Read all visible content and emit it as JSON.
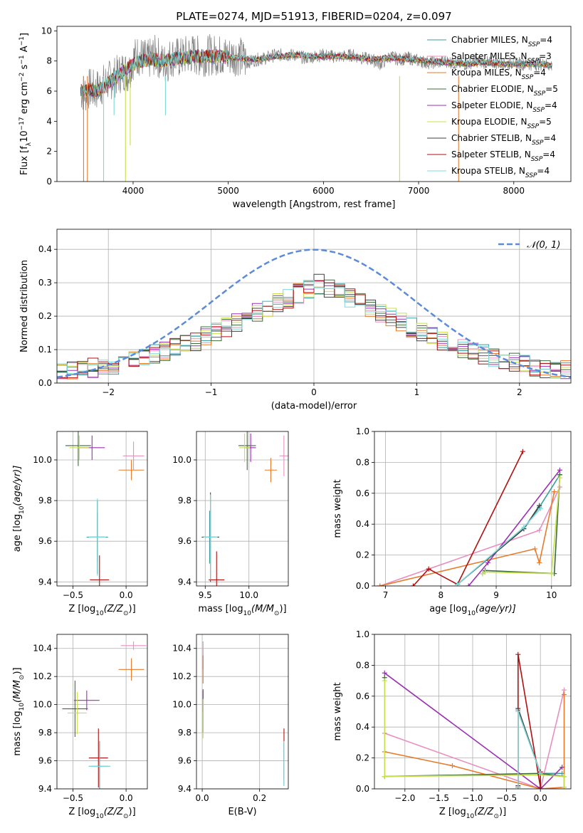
{
  "figure_title": "PLATE=0274, MJD=51913, FIBERID=0204, z=0.097",
  "models": [
    {
      "label": "Chabrier MILES, N$_{SSP}$=4",
      "display": [
        "Chabrier MILES, N",
        "SSP",
        "=4"
      ],
      "color": "#3a9e9e"
    },
    {
      "label": "Salpeter MILES, N$_{SSP}$=3",
      "display": [
        "Salpeter MILES, N",
        "SSP",
        "=3"
      ],
      "color": "#e88fbf"
    },
    {
      "label": "Kroupa MILES, N$_{SSP}$=4",
      "display": [
        "Kroupa MILES, N",
        "SSP",
        "=4"
      ],
      "color": "#e87a2a"
    },
    {
      "label": "Chabrier ELODIE, N$_{SSP}$=5",
      "display": [
        "Chabrier ELODIE, N",
        "SSP",
        "=5"
      ],
      "color": "#3d6b3d"
    },
    {
      "label": "Salpeter ELODIE, N$_{SSP}$=4",
      "display": [
        "Salpeter ELODIE, N",
        "SSP",
        "=4"
      ],
      "color": "#9b30b5"
    },
    {
      "label": "Kroupa ELODIE, N$_{SSP}$=5",
      "display": [
        "Kroupa ELODIE, N",
        "SSP",
        "=5"
      ],
      "color": "#c8e04a"
    },
    {
      "label": "Chabrier STELIB, N$_{SSP}$=4",
      "display": [
        "Chabrier STELIB, N",
        "SSP",
        "=4"
      ],
      "color": "#404040"
    },
    {
      "label": "Salpeter STELIB, N$_{SSP}$=4",
      "display": [
        "Salpeter STELIB, N",
        "SSP",
        "=4"
      ],
      "color": "#b01010"
    },
    {
      "label": "Kroupa STELIB, N$_{SSP}$=4",
      "display": [
        "Kroupa STELIB, N",
        "SSP",
        "=4"
      ],
      "color": "#7fd8d8"
    }
  ],
  "chart_data": [
    {
      "type": "line",
      "id": "spectrum",
      "xlabel": "wavelength [Angstrom, rest frame]",
      "ylabel": "Flux [f$_\\lambda$10$^{-17}$ erg cm$^{-2}$ s$^{-1}$ A$^{-1}$]",
      "ylabel_display": [
        "Flux [f",
        "λ",
        "10",
        "−17",
        " erg cm",
        "−2",
        " s",
        "−1",
        " A",
        "−1",
        "]"
      ],
      "xlim": [
        3200,
        8600
      ],
      "ylim": [
        0,
        10.3
      ],
      "xticks": [
        4000,
        5000,
        6000,
        7000,
        8000
      ],
      "yticks": [
        0,
        2,
        4,
        6,
        8,
        10
      ],
      "grid": false,
      "legend": "right",
      "data_series": {
        "name": "data",
        "color": "#808080",
        "x": [
          3450,
          3500,
          3550,
          3600,
          3650,
          3700,
          3750,
          3800,
          3850,
          3900,
          3950,
          4000,
          4050,
          4100,
          4150,
          4200,
          4250,
          4300,
          4350,
          4400,
          4500,
          4600,
          4700,
          4800,
          4900,
          5000,
          5100,
          5200,
          5300,
          5400,
          5500,
          5600,
          5700,
          5800,
          5900,
          6000,
          6100,
          6200,
          6300,
          6400,
          6500,
          6600,
          6700,
          6800,
          6900,
          7000,
          7100,
          7200,
          7300,
          7400,
          7500,
          7600,
          7700,
          7800,
          7900,
          8000,
          8100,
          8200,
          8300,
          8400
        ],
        "y": [
          6.0,
          5.9,
          6.2,
          6.0,
          6.3,
          6.5,
          6.7,
          6.9,
          7.1,
          7.4,
          7.2,
          8.1,
          8.4,
          8.2,
          8.0,
          8.3,
          8.4,
          7.9,
          7.8,
          8.3,
          8.2,
          8.5,
          8.3,
          8.4,
          8.4,
          8.3,
          8.4,
          7.9,
          8.1,
          8.2,
          8.4,
          8.4,
          8.4,
          8.2,
          8.3,
          8.4,
          8.3,
          8.3,
          8.4,
          8.2,
          8.1,
          7.8,
          8.3,
          8.1,
          8.2,
          8.0,
          7.9,
          7.9,
          8.0,
          7.8,
          7.8,
          8.0,
          7.9,
          7.9,
          7.8,
          7.9,
          7.8,
          7.8,
          7.8,
          7.7
        ]
      },
      "model_curve": {
        "x": [
          3450,
          3500,
          3550,
          3600,
          3650,
          3700,
          3800,
          3900,
          4000,
          4100,
          4200,
          4300,
          4400,
          4500,
          4700,
          4900,
          5100,
          5300,
          5500,
          5700,
          5900,
          6100,
          6300,
          6500,
          6700,
          6900,
          7100,
          7300,
          7500,
          7700,
          7900,
          8100,
          8300,
          8400
        ],
        "y": [
          6.0,
          6.0,
          6.1,
          6.0,
          6.1,
          6.3,
          6.8,
          7.3,
          7.8,
          8.0,
          8.1,
          8.0,
          8.1,
          8.2,
          8.3,
          8.3,
          8.2,
          8.1,
          8.3,
          8.4,
          8.3,
          8.3,
          8.3,
          8.1,
          8.2,
          8.1,
          8.0,
          7.9,
          7.8,
          7.9,
          7.8,
          7.8,
          7.8,
          7.7
        ]
      },
      "dips": [
        {
          "x": 3480,
          "y": 0.0
        },
        {
          "x": 3520,
          "y": 0.0
        },
        {
          "x": 3690,
          "y": 0.0
        },
        {
          "x": 3800,
          "y": 4.4
        },
        {
          "x": 3920,
          "y": 0.0
        },
        {
          "x": 3970,
          "y": 2.4
        },
        {
          "x": 4340,
          "y": 4.4
        },
        {
          "x": 6800,
          "y": 0.0
        },
        {
          "x": 7420,
          "y": 0.0
        }
      ]
    },
    {
      "type": "histogram",
      "id": "residuals",
      "xlabel": "(data-model)/error",
      "ylabel": "Normed distribution",
      "xlim": [
        -2.5,
        2.5
      ],
      "ylim": [
        0,
        0.46
      ],
      "xticks": [
        -2,
        -1,
        0,
        1,
        2
      ],
      "yticks": [
        0.0,
        0.1,
        0.2,
        0.3,
        0.4
      ],
      "grid": true,
      "legend": "top-right",
      "bin_width": 0.1,
      "bin_start": -2.5,
      "base_values": [
        0.035,
        0.04,
        0.042,
        0.045,
        0.048,
        0.055,
        0.062,
        0.07,
        0.078,
        0.086,
        0.094,
        0.104,
        0.115,
        0.126,
        0.139,
        0.152,
        0.166,
        0.18,
        0.195,
        0.21,
        0.225,
        0.24,
        0.254,
        0.268,
        0.282,
        0.296,
        0.31,
        0.323,
        0.335,
        0.346,
        0.356,
        0.366,
        0.375,
        0.383,
        0.39,
        0.396,
        0.4,
        0.402,
        0.403,
        0.402,
        0.4,
        0.397,
        0.392,
        0.386,
        0.379,
        0.371,
        0.362,
        0.352,
        0.341,
        0.33,
        0.318
      ],
      "gaussian": {
        "label": "$\\mathcal{N}(0,1)$",
        "display": "𝒩(0, 1)",
        "color": "#5b8bd9",
        "mu": 0,
        "sigma": 1
      }
    },
    {
      "type": "scatter",
      "id": "age_vs_Z",
      "xlabel": "Z [log$_{10}$(Z/Z$_\\odot$)]",
      "xlabel_display": [
        "Z [log",
        "10",
        "(Z/Z",
        "⊙",
        ")]"
      ],
      "ylabel": "age  [log$_{10}$(age/yr)]",
      "ylabel_display": [
        "age  [log",
        "10",
        "(age/yr)]"
      ],
      "xlim": [
        -0.65,
        0.2
      ],
      "ylim": [
        9.38,
        10.14
      ],
      "xticks": [
        -0.5,
        0.0
      ],
      "yticks": [
        9.4,
        9.6,
        9.8,
        10.0
      ],
      "grid": true,
      "points": [
        {
          "model": 0,
          "x": -0.27,
          "y": 9.62,
          "xerr": 0.1,
          "yerr": 0.12
        },
        {
          "model": 1,
          "x": 0.07,
          "y": 10.02,
          "xerr": 0.1,
          "yerr": 0.07
        },
        {
          "model": 2,
          "x": 0.05,
          "y": 9.95,
          "xerr": 0.12,
          "yerr": 0.05
        },
        {
          "model": 3,
          "x": -0.45,
          "y": 10.07,
          "xerr": 0.12,
          "yerr": 0.1
        },
        {
          "model": 4,
          "x": -0.32,
          "y": 10.06,
          "xerr": 0.12,
          "yerr": 0.06
        },
        {
          "model": 5,
          "x": -0.44,
          "y": 10.06,
          "xerr": 0.09,
          "yerr": 0.06
        },
        {
          "model": 6,
          "x": -0.27,
          "y": 9.62,
          "xerr": 0.07,
          "yerr": 0.18
        },
        {
          "model": 7,
          "x": -0.25,
          "y": 9.41,
          "xerr": 0.09,
          "yerr": 0.12
        },
        {
          "model": 8,
          "x": -0.27,
          "y": 9.62,
          "xerr": 0.08,
          "yerr": 0.19
        }
      ]
    },
    {
      "type": "scatter",
      "id": "age_vs_mass",
      "xlabel": "mass [log$_{10}$(M/M$_\\odot$)]",
      "xlabel_display": [
        "mass [log",
        "10",
        "(M/M",
        "⊙",
        ")]"
      ],
      "ylabel": "",
      "xlim": [
        9.4,
        10.45
      ],
      "ylim": [
        9.38,
        10.14
      ],
      "xticks": [
        9.5,
        10.0
      ],
      "yticks": [
        9.4,
        9.6,
        9.8,
        10.0
      ],
      "grid": true,
      "points": [
        {
          "model": 0,
          "x": 9.55,
          "y": 9.62,
          "xerr": 0.07,
          "yerr": 0.13
        },
        {
          "model": 1,
          "x": 10.4,
          "y": 10.02,
          "xerr": 0.05,
          "yerr": 0.1
        },
        {
          "model": 2,
          "x": 10.25,
          "y": 9.95,
          "xerr": 0.07,
          "yerr": 0.06
        },
        {
          "model": 3,
          "x": 9.98,
          "y": 10.07,
          "xerr": 0.1,
          "yerr": 0.12
        },
        {
          "model": 4,
          "x": 10.02,
          "y": 10.06,
          "xerr": 0.06,
          "yerr": 0.07
        },
        {
          "model": 5,
          "x": 9.95,
          "y": 10.06,
          "xerr": 0.06,
          "yerr": 0.07
        },
        {
          "model": 6,
          "x": 9.56,
          "y": 9.62,
          "xerr": 0.1,
          "yerr": 0.22
        },
        {
          "model": 7,
          "x": 9.63,
          "y": 9.41,
          "xerr": 0.09,
          "yerr": 0.14
        },
        {
          "model": 8,
          "x": 9.56,
          "y": 9.62,
          "xerr": 0.08,
          "yerr": 0.21
        }
      ]
    },
    {
      "type": "line",
      "id": "mass_weight_vs_age",
      "xlabel": "age  [log$_{10}$(age/yr)]",
      "xlabel_display": [
        "age  [log",
        "10",
        "(age/yr)]"
      ],
      "ylabel": "mass weight",
      "xlim": [
        6.8,
        10.35
      ],
      "ylim": [
        0,
        1.0
      ],
      "xticks": [
        7,
        8,
        9,
        10
      ],
      "yticks": [
        0.0,
        0.2,
        0.4,
        0.6,
        0.8,
        1.0
      ],
      "grid": true,
      "series": [
        {
          "model": 0,
          "x": [
            8.3,
            9.5,
            9.78,
            10.15
          ],
          "y": [
            0.01,
            0.37,
            0.51,
            0.72
          ]
        },
        {
          "model": 1,
          "x": [
            6.9,
            9.78,
            10.15
          ],
          "y": [
            0.0,
            0.36,
            0.64
          ]
        },
        {
          "model": 2,
          "x": [
            6.9,
            9.7,
            9.78,
            10.05
          ],
          "y": [
            0.0,
            0.24,
            0.15,
            0.61
          ]
        },
        {
          "model": 3,
          "x": [
            8.75,
            8.8,
            10.05,
            10.15
          ],
          "y": [
            0.08,
            0.1,
            0.08,
            0.72
          ]
        },
        {
          "model": 4,
          "x": [
            8.5,
            8.85,
            10.15
          ],
          "y": [
            0.0,
            0.15,
            0.75
          ]
        },
        {
          "model": 5,
          "x": [
            8.75,
            8.8,
            10.0,
            10.15
          ],
          "y": [
            0.08,
            0.09,
            0.08,
            0.7
          ]
        },
        {
          "model": 6,
          "x": [
            8.3,
            9.5,
            9.78
          ],
          "y": [
            0.01,
            0.37,
            0.52
          ]
        },
        {
          "model": 7,
          "x": [
            7.5,
            7.78,
            8.3,
            9.48
          ],
          "y": [
            0.0,
            0.11,
            0.01,
            0.87
          ]
        },
        {
          "model": 8,
          "x": [
            8.3,
            9.5,
            9.8
          ],
          "y": [
            0.01,
            0.38,
            0.5
          ]
        }
      ]
    },
    {
      "type": "scatter",
      "id": "mass_vs_Z",
      "xlabel": "Z [log$_{10}$(Z/Z$_\\odot$)]",
      "xlabel_display": [
        "Z [log",
        "10",
        "(Z/Z",
        "⊙",
        ")]"
      ],
      "ylabel": "mass [log$_{10}$(M/M$_\\odot$)]",
      "ylabel_display": [
        "mass [log",
        "10",
        "(M/M",
        "⊙",
        ")]"
      ],
      "xlim": [
        -0.65,
        0.2
      ],
      "ylim": [
        9.4,
        10.5
      ],
      "xticks": [
        -0.5,
        0.0
      ],
      "yticks": [
        9.4,
        9.6,
        9.8,
        10.0,
        10.2,
        10.4
      ],
      "grid": true,
      "points": [
        {
          "model": 0,
          "x": -0.25,
          "y": 9.56,
          "xerr": 0.08,
          "yerr": 0.18
        },
        {
          "model": 1,
          "x": 0.07,
          "y": 10.42,
          "xerr": 0.12,
          "yerr": 0.03
        },
        {
          "model": 2,
          "x": 0.05,
          "y": 10.25,
          "xerr": 0.12,
          "yerr": 0.08
        },
        {
          "model": 3,
          "x": -0.48,
          "y": 9.97,
          "xerr": 0.12,
          "yerr": 0.2
        },
        {
          "model": 4,
          "x": -0.37,
          "y": 10.03,
          "xerr": 0.12,
          "yerr": 0.07
        },
        {
          "model": 5,
          "x": -0.46,
          "y": 9.94,
          "xerr": 0.09,
          "yerr": 0.15
        },
        {
          "model": 6,
          "x": -0.25,
          "y": 9.56,
          "xerr": 0.1,
          "yerr": 0.18
        },
        {
          "model": 7,
          "x": -0.26,
          "y": 9.62,
          "xerr": 0.09,
          "yerr": 0.21
        },
        {
          "model": 8,
          "x": -0.25,
          "y": 9.56,
          "xerr": 0.1,
          "yerr": 0.18
        }
      ]
    },
    {
      "type": "scatter",
      "id": "mass_vs_EBV",
      "xlabel": "E(B-V)",
      "ylabel": "",
      "xlim": [
        -0.02,
        0.3
      ],
      "ylim": [
        9.4,
        10.5
      ],
      "xticks": [
        0.0,
        0.2
      ],
      "yticks": [
        9.4,
        9.6,
        9.8,
        10.0,
        10.2,
        10.4
      ],
      "grid": true,
      "points": [
        {
          "model": 0,
          "x": 0.285,
          "y": 9.58,
          "xerr": 0,
          "yerr": 0.16
        },
        {
          "model": 1,
          "x": 0.003,
          "y": 10.35,
          "xerr": 0,
          "yerr": 0.1
        },
        {
          "model": 2,
          "x": 0.003,
          "y": 10.25,
          "xerr": 0,
          "yerr": 0.1
        },
        {
          "model": 3,
          "x": 0.003,
          "y": 9.95,
          "xerr": 0,
          "yerr": 0.15
        },
        {
          "model": 4,
          "x": 0.003,
          "y": 10.03,
          "xerr": 0,
          "yerr": 0.08
        },
        {
          "model": 5,
          "x": 0.003,
          "y": 9.9,
          "xerr": 0,
          "yerr": 0.14
        },
        {
          "model": 6,
          "x": 0.285,
          "y": 9.58,
          "xerr": 0,
          "yerr": 0.15
        },
        {
          "model": 7,
          "x": 0.285,
          "y": 9.65,
          "xerr": 0,
          "yerr": 0.18
        },
        {
          "model": 8,
          "x": 0.285,
          "y": 9.58,
          "xerr": 0,
          "yerr": 0.16
        }
      ]
    },
    {
      "type": "line",
      "id": "mass_weight_vs_Z",
      "xlabel": "Z [log$_{10}$(Z/Z$_\\odot$)]",
      "xlabel_display": [
        "Z [log",
        "10",
        "(Z/Z",
        "⊙",
        ")]"
      ],
      "ylabel": "mass weight",
      "xlim": [
        -2.45,
        0.45
      ],
      "ylim": [
        0,
        1.0
      ],
      "xticks": [
        -2.0,
        -1.5,
        -1.0,
        -0.5,
        0.0
      ],
      "yticks": [
        0.0,
        0.2,
        0.4,
        0.6,
        0.8,
        1.0
      ],
      "grid": true,
      "series": [
        {
          "model": 0,
          "x": [
            -0.33,
            -0.33,
            0.0,
            0.32
          ],
          "y": [
            0.01,
            0.51,
            0.1,
            0.1
          ]
        },
        {
          "model": 1,
          "x": [
            -2.3,
            0.0,
            0.35
          ],
          "y": [
            0.36,
            0.0,
            0.64
          ]
        },
        {
          "model": 2,
          "x": [
            -2.3,
            -1.3,
            0.0,
            0.35,
            0.35
          ],
          "y": [
            0.24,
            0.15,
            0.0,
            0.01,
            0.61
          ]
        },
        {
          "model": 3,
          "x": [
            -2.3,
            -2.3,
            0.0,
            0.35
          ],
          "y": [
            0.72,
            0.08,
            0.1,
            0.08
          ]
        },
        {
          "model": 4,
          "x": [
            -2.3,
            0.0,
            0.32
          ],
          "y": [
            0.75,
            0.0,
            0.14
          ]
        },
        {
          "model": 5,
          "x": [
            -2.3,
            -2.3,
            0.0,
            0.35,
            0.35
          ],
          "y": [
            0.7,
            0.08,
            0.09,
            0.08,
            0.01
          ]
        },
        {
          "model": 6,
          "x": [
            -0.33,
            -0.33,
            0.0
          ],
          "y": [
            0.01,
            0.52,
            0.1
          ]
        },
        {
          "model": 7,
          "x": [
            -0.33,
            -0.33,
            0.0,
            0.0
          ],
          "y": [
            0.02,
            0.87,
            0.01,
            0.11
          ]
        },
        {
          "model": 8,
          "x": [
            -0.33,
            -0.33,
            0.0
          ],
          "y": [
            0.01,
            0.5,
            0.1
          ]
        }
      ]
    }
  ]
}
